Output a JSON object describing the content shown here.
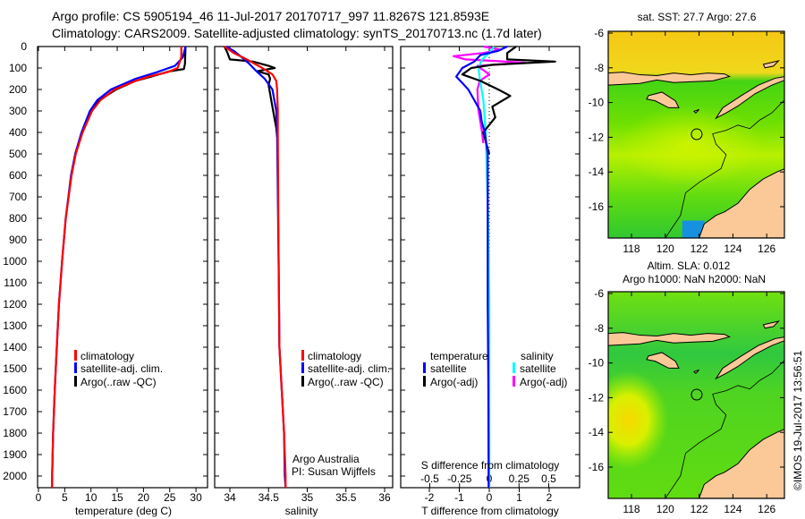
{
  "header": {
    "title_line1": "Argo profile: CS 5905194_46 11-Jul-2017 20170717_997 11.8267S 121.8593E",
    "title_line2": "Climatology: CARS2009. Satellite-adjusted climatology: synTS_20170713.nc (1.7d later)"
  },
  "footer": {
    "copyright": "©IMOS 19-Jul-2017 13:56:51",
    "credit_line1": "Argo Australia",
    "credit_line2": "PI: Susan Wijffels"
  },
  "colors": {
    "climatology": "#ff0000",
    "satellite": "#0000ff",
    "argo": "#000000",
    "salinity_satellite": "#00ffff",
    "salinity_argo": "#ff00ff",
    "land": "#fbc998"
  },
  "chart_data": [
    {
      "type": "line",
      "id": "temperature",
      "xlabel": "temperature (deg C)",
      "ylabel": "",
      "xlim": [
        -0.2,
        32
      ],
      "ylim": [
        2054,
        0
      ],
      "xticks": [
        0,
        5,
        10,
        15,
        20,
        25,
        30
      ],
      "yticks": [
        0,
        100,
        200,
        300,
        400,
        500,
        600,
        700,
        800,
        900,
        1000,
        1100,
        1200,
        1300,
        1400,
        1500,
        1600,
        1700,
        1800,
        1900,
        2000
      ],
      "legend": [
        "climatology",
        "satellite-adj. clim.",
        "Argo(..raw -QC)"
      ],
      "series": [
        {
          "name": "climatology",
          "color": "#ff0000",
          "depth": [
            0,
            50,
            100,
            120,
            140,
            160,
            200,
            250,
            300,
            400,
            500,
            600,
            800,
            1000,
            1200,
            1400,
            1600,
            1800,
            2000,
            2054
          ],
          "values": [
            27.2,
            27.2,
            26.5,
            24.5,
            21,
            18.5,
            14.5,
            11.8,
            10.2,
            8.4,
            7.1,
            6.3,
            5.2,
            4.5,
            3.9,
            3.5,
            3.1,
            2.8,
            2.6,
            2.6
          ]
        },
        {
          "name": "satellite-adj. clim.",
          "color": "#0000ff",
          "depth": [
            0,
            50,
            90,
            120,
            150,
            200,
            250,
            300,
            400,
            500,
            600,
            800,
            1000,
            1200,
            1400,
            1600,
            1800,
            2000,
            2054
          ],
          "values": [
            28,
            27.5,
            26,
            22.5,
            18.5,
            13.8,
            11.2,
            9.8,
            8.2,
            7.0,
            6.2,
            5.2,
            4.5,
            3.9,
            3.5,
            3.1,
            2.8,
            2.6,
            2.6
          ]
        },
        {
          "name": "Argo(..raw -QC)",
          "color": "#000000",
          "depth": [
            0,
            80,
            105,
            115,
            140,
            160,
            200,
            250,
            300,
            400,
            500
          ],
          "values": [
            28,
            27.9,
            27.7,
            25,
            21.5,
            18.5,
            14.8,
            11.6,
            10.0,
            8.3,
            7.0
          ]
        }
      ]
    },
    {
      "type": "line",
      "id": "salinity",
      "xlabel": "salinity",
      "xlim": [
        33.8,
        36.1
      ],
      "ylim": [
        2054,
        0
      ],
      "xticks": [
        34,
        34.5,
        35,
        35.5,
        36
      ],
      "xtick_labels": [
        "34",
        "34.5",
        "35",
        "35.5",
        "36"
      ],
      "legend": [
        "climatology",
        "satellite-adj. clim.",
        "Argo(..raw -QC)"
      ],
      "series": [
        {
          "name": "climatology",
          "color": "#ff0000",
          "depth": [
            0,
            30,
            60,
            100,
            130,
            160,
            200,
            300,
            400,
            1000,
            1400,
            1600,
            1800,
            2000,
            2054
          ],
          "values": [
            33.93,
            34.05,
            34.22,
            34.42,
            34.55,
            34.6,
            34.61,
            34.62,
            34.62,
            34.63,
            34.64,
            34.67,
            34.7,
            34.72,
            34.72
          ]
        },
        {
          "name": "satellite-adj. clim.",
          "color": "#0000ff",
          "depth": [
            0,
            20,
            40,
            80,
            110,
            150,
            200,
            300,
            400,
            1000,
            1400,
            1600,
            1800,
            2000,
            2054
          ],
          "values": [
            33.95,
            34.05,
            34.12,
            34.25,
            34.33,
            34.45,
            34.55,
            34.6,
            34.61,
            34.63,
            34.64,
            34.67,
            34.7,
            34.71,
            34.72
          ]
        },
        {
          "name": "Argo(..raw -QC)",
          "color": "#000000",
          "depth": [
            0,
            30,
            60,
            70,
            90,
            100,
            115,
            130,
            150,
            180,
            220,
            300,
            380,
            420
          ],
          "values": [
            33.93,
            33.97,
            34.0,
            34.3,
            34.5,
            34.58,
            34.35,
            34.5,
            34.52,
            34.5,
            34.52,
            34.56,
            34.6,
            34.61
          ]
        }
      ]
    },
    {
      "type": "line",
      "id": "difference",
      "xlabel": "T difference from climatology",
      "x2label": "S difference from climatology",
      "xlim": [
        -2.8,
        3.0
      ],
      "ylim": [
        2054,
        0
      ],
      "xticks": [
        -2,
        -1,
        0,
        1,
        2
      ],
      "x2ticks": [
        -0.5,
        -0.25,
        0,
        0.25,
        0.5
      ],
      "x2tick_labels": [
        "-0.5",
        "-0.25",
        "0",
        "0.25",
        "0.5"
      ],
      "legend": {
        "temperature_title": "temperature",
        "salinity_title": "salinity",
        "entries": [
          "satellite",
          "Argo(-adj)",
          "satellite",
          "Argo(-adj)"
        ]
      },
      "series": [
        {
          "name": "T satellite",
          "axis": "T",
          "color": "#0000ff",
          "depth": [
            0,
            20,
            40,
            70,
            100,
            140,
            170,
            200,
            250,
            300,
            350,
            400,
            500,
            800,
            1200,
            1600,
            2054
          ],
          "values": [
            0.6,
            0.3,
            -0.3,
            -0.5,
            -0.9,
            -1.1,
            -0.9,
            -0.7,
            -0.5,
            -0.3,
            -0.25,
            -0.15,
            -0.05,
            -0.05,
            -0.05,
            -0.03,
            -0.02
          ]
        },
        {
          "name": "T Argo(-adj)",
          "axis": "T",
          "color": "#000000",
          "depth": [
            0,
            30,
            60,
            70,
            85,
            100,
            130,
            160,
            200,
            230,
            280,
            330,
            400,
            450,
            500
          ],
          "values": [
            0.9,
            0.6,
            0.6,
            2.2,
            0.1,
            -0.6,
            -0.9,
            -0.3,
            0.3,
            0.7,
            0.1,
            0.2,
            -0.2,
            -0.1,
            0
          ]
        },
        {
          "name": "S satellite",
          "axis": "S",
          "color": "#00ffff",
          "depth": [
            0,
            30,
            60,
            100,
            150,
            250,
            400,
            800,
            1200,
            2054
          ],
          "values": [
            0.04,
            0.0,
            -0.06,
            -0.09,
            -0.08,
            -0.05,
            -0.03,
            -0.01,
            0.0,
            0.0
          ]
        },
        {
          "name": "S Argo(-adj)",
          "axis": "S",
          "color": "#ff00ff",
          "depth": [
            0,
            15,
            30,
            45,
            60,
            75,
            90,
            110,
            130,
            160,
            200,
            300,
            400,
            450
          ],
          "values": [
            -0.05,
            0.1,
            -0.05,
            -0.3,
            -0.2,
            0.3,
            -0.1,
            -0.05,
            0.0,
            -0.08,
            -0.1,
            -0.09,
            -0.06,
            -0.05
          ]
        }
      ]
    },
    {
      "type": "heatmap",
      "id": "sst_map",
      "title": "sat. SST: 27.7 Argo: 27.6",
      "xlim": [
        116.6,
        127.1
      ],
      "ylim": [
        -17.8,
        -5.9
      ],
      "xticks": [
        118,
        120,
        122,
        124,
        126
      ],
      "yticks": [
        -6,
        -8,
        -10,
        -12,
        -14,
        -16
      ],
      "ytick_labels": [
        "-6",
        "-8",
        "-10",
        "-12",
        "-14",
        "-16"
      ],
      "argo_position": [
        121.8593,
        -11.8267
      ]
    },
    {
      "type": "heatmap",
      "id": "sla_map",
      "title_line1": "Altim. SLA: 0.012",
      "title_line2": "Argo h1000: NaN h2000: NaN",
      "xlim": [
        116.6,
        127.1
      ],
      "ylim": [
        -17.8,
        -5.9
      ],
      "xticks": [
        118,
        120,
        122,
        124,
        126
      ],
      "yticks": [
        -6,
        -8,
        -10,
        -12,
        -14,
        -16
      ],
      "ytick_labels": [
        "-6",
        "-8",
        "-10",
        "-12",
        "-14",
        "-16"
      ],
      "argo_position": [
        121.8593,
        -11.8267
      ]
    }
  ]
}
